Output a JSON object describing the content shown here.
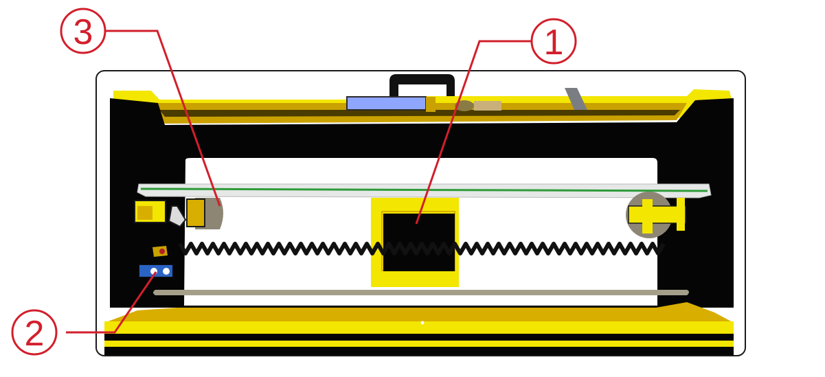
{
  "callouts": [
    {
      "id": "1",
      "label": "1"
    },
    {
      "id": "2",
      "label": "2"
    },
    {
      "id": "3",
      "label": "3"
    }
  ],
  "colors": {
    "frame_yellow": "#f3e600",
    "frame_gold": "#d8ae00",
    "frame_black": "#050505",
    "window_white": "#ffffff",
    "display_blue": "#8fa6ff",
    "callout_red": "#d21f2b",
    "glass_green": "#2e9b3a",
    "rail_gray": "#a59f8a"
  }
}
